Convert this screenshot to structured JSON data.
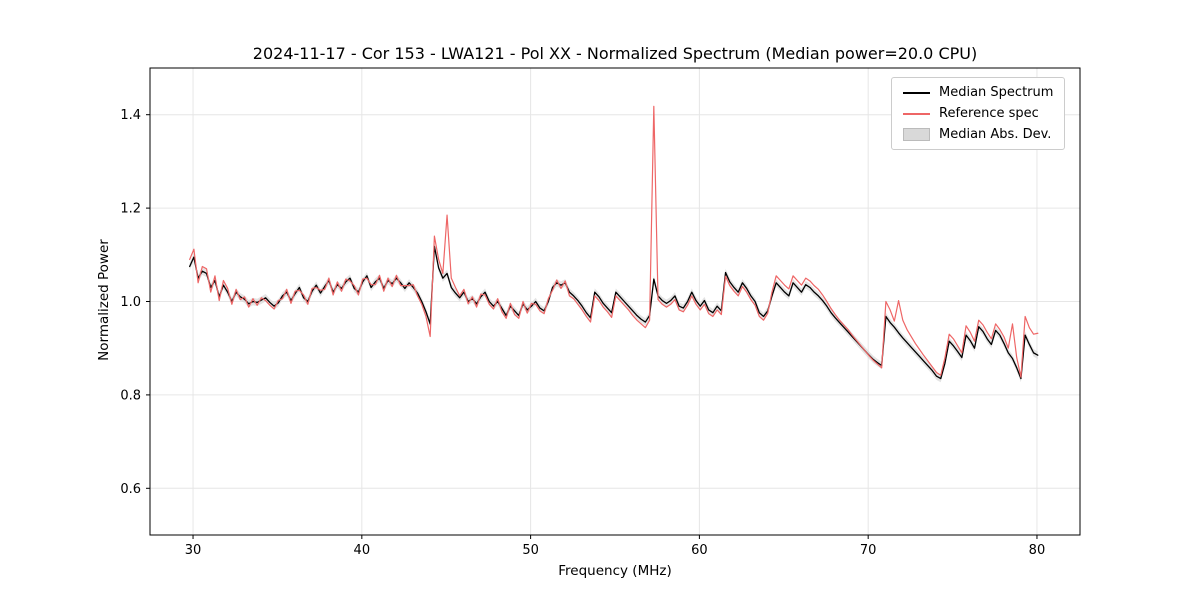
{
  "figure": {
    "title": "2024-11-17 - Cor 153 - LWA121 - Pol XX - Normalized Spectrum (Median power=20.0 CPU)",
    "xlabel": "Frequency (MHz)",
    "ylabel": "Normalized Power"
  },
  "legend": {
    "items": [
      {
        "label": "Median Spectrum",
        "color": "#000000",
        "type": "line"
      },
      {
        "label": "Reference spec",
        "color": "#ee6666",
        "type": "line"
      },
      {
        "label": "Median Abs. Dev.",
        "color": "#d9d9d9",
        "type": "patch"
      }
    ]
  },
  "chart_data": {
    "type": "line",
    "title": "2024-11-17 - Cor 153 - LWA121 - Pol XX - Normalized Spectrum (Median power=20.0 CPU)",
    "xlabel": "Frequency (MHz)",
    "ylabel": "Normalized Power",
    "xlim": [
      27.45,
      82.55
    ],
    "ylim": [
      0.5,
      1.5
    ],
    "xticks": [
      30,
      40,
      50,
      60,
      70,
      80
    ],
    "xtick_labels": [
      "30",
      "40",
      "50",
      "60",
      "70",
      "80"
    ],
    "yticks": [
      0.6,
      0.8,
      1.0,
      1.2,
      1.4
    ],
    "ytick_labels": [
      "0.6",
      "0.8",
      "1.0",
      "1.2",
      "1.4"
    ],
    "grid": true,
    "legend_position": "upper right",
    "x_unit": "MHz",
    "x_start": 29.8,
    "x_step": 0.25,
    "mad_half_width": 0.008,
    "colors": {
      "grid": "#e6e6e6",
      "band": "#d9d9d9",
      "frame": "#000000"
    },
    "series": [
      {
        "name": "Median Spectrum",
        "color": "#000000",
        "width": 1.3,
        "values": [
          1.075,
          1.095,
          1.05,
          1.065,
          1.06,
          1.03,
          1.045,
          1.01,
          1.035,
          1.02,
          1.0,
          1.02,
          1.01,
          1.005,
          0.995,
          1.0,
          0.998,
          1.003,
          1.008,
          0.998,
          0.99,
          0.997,
          1.012,
          1.02,
          1.002,
          1.017,
          1.03,
          1.008,
          1.0,
          1.022,
          1.035,
          1.018,
          1.032,
          1.045,
          1.02,
          1.036,
          1.028,
          1.042,
          1.05,
          1.028,
          1.02,
          1.042,
          1.055,
          1.03,
          1.042,
          1.05,
          1.028,
          1.045,
          1.038,
          1.05,
          1.04,
          1.028,
          1.04,
          1.03,
          1.018,
          1.0,
          0.978,
          0.952,
          1.118,
          1.072,
          1.05,
          1.06,
          1.03,
          1.018,
          1.008,
          1.02,
          1.0,
          1.006,
          0.995,
          1.01,
          1.02,
          1.0,
          0.99,
          1.0,
          0.985,
          0.97,
          0.99,
          0.98,
          0.97,
          0.995,
          0.982,
          0.99,
          1.0,
          0.986,
          0.98,
          1.0,
          1.03,
          1.04,
          1.035,
          1.04,
          1.02,
          1.012,
          1.002,
          0.99,
          0.976,
          0.965,
          1.02,
          1.01,
          0.996,
          0.986,
          0.976,
          1.02,
          1.01,
          1.0,
          0.99,
          0.98,
          0.97,
          0.962,
          0.956,
          0.97,
          1.048,
          1.012,
          1.002,
          0.996,
          1.002,
          1.012,
          0.99,
          0.986,
          1.0,
          1.02,
          1.002,
          0.99,
          1.002,
          0.982,
          0.976,
          0.99,
          0.98,
          1.062,
          1.042,
          1.03,
          1.02,
          1.04,
          1.028,
          1.012,
          1.0,
          0.976,
          0.968,
          0.98,
          1.012,
          1.04,
          1.03,
          1.02,
          1.012,
          1.04,
          1.03,
          1.02,
          1.036,
          1.03,
          1.02,
          1.012,
          1.002,
          0.99,
          0.976,
          0.965,
          0.955,
          0.945,
          0.935,
          0.925,
          0.915,
          0.905,
          0.895,
          0.885,
          0.876,
          0.869,
          0.863,
          0.968,
          0.955,
          0.945,
          0.933,
          0.922,
          0.912,
          0.902,
          0.892,
          0.882,
          0.872,
          0.862,
          0.852,
          0.84,
          0.835,
          0.868,
          0.915,
          0.905,
          0.893,
          0.88,
          0.928,
          0.916,
          0.9,
          0.946,
          0.936,
          0.92,
          0.908,
          0.938,
          0.928,
          0.91,
          0.89,
          0.878,
          0.858,
          0.835,
          0.928,
          0.908,
          0.89,
          0.885
        ]
      },
      {
        "name": "Reference spec",
        "color": "#ee6666",
        "width": 1.2,
        "values": [
          1.09,
          1.112,
          1.04,
          1.075,
          1.07,
          1.02,
          1.055,
          1.002,
          1.045,
          1.028,
          0.994,
          1.026,
          1.004,
          1.01,
          0.988,
          1.006,
          0.992,
          1.008,
          1.002,
          0.992,
          0.984,
          1.002,
          1.006,
          1.026,
          0.996,
          1.022,
          1.024,
          1.014,
          0.994,
          1.028,
          1.03,
          1.024,
          1.026,
          1.05,
          1.014,
          1.042,
          1.022,
          1.048,
          1.044,
          1.034,
          1.014,
          1.048,
          1.05,
          1.036,
          1.036,
          1.056,
          1.022,
          1.05,
          1.032,
          1.056,
          1.034,
          1.034,
          1.034,
          1.036,
          1.012,
          0.994,
          0.968,
          0.925,
          1.14,
          1.09,
          1.06,
          1.185,
          1.05,
          1.03,
          1.012,
          1.026,
          0.995,
          1.01,
          0.988,
          1.016,
          1.014,
          0.994,
          0.984,
          1.006,
          0.978,
          0.964,
          0.996,
          0.972,
          0.964,
          1.0,
          0.975,
          0.996,
          0.994,
          0.98,
          0.974,
          1.006,
          1.024,
          1.046,
          1.028,
          1.044,
          1.012,
          1.006,
          0.994,
          0.982,
          0.968,
          0.956,
          1.012,
          1.002,
          0.988,
          0.978,
          0.966,
          1.012,
          1.002,
          0.992,
          0.982,
          0.97,
          0.96,
          0.952,
          0.944,
          0.96,
          1.418,
          1.004,
          0.994,
          0.988,
          0.994,
          1.004,
          0.982,
          0.978,
          0.992,
          1.012,
          0.994,
          0.982,
          0.994,
          0.974,
          0.968,
          0.982,
          0.972,
          1.054,
          1.034,
          1.022,
          1.012,
          1.032,
          1.02,
          1.004,
          0.992,
          0.968,
          0.96,
          0.975,
          1.02,
          1.055,
          1.045,
          1.035,
          1.027,
          1.055,
          1.045,
          1.035,
          1.05,
          1.044,
          1.034,
          1.026,
          1.014,
          1.0,
          0.985,
          0.972,
          0.96,
          0.95,
          0.94,
          0.928,
          0.917,
          0.906,
          0.895,
          0.884,
          0.874,
          0.866,
          0.858,
          1.0,
          0.982,
          0.958,
          1.002,
          0.96,
          0.94,
          0.925,
          0.91,
          0.897,
          0.884,
          0.872,
          0.86,
          0.848,
          0.842,
          0.88,
          0.93,
          0.92,
          0.905,
          0.89,
          0.948,
          0.934,
          0.915,
          0.96,
          0.95,
          0.934,
          0.92,
          0.952,
          0.94,
          0.924,
          0.9,
          0.952,
          0.88,
          0.838,
          0.968,
          0.944,
          0.93,
          0.932
        ]
      }
    ]
  }
}
